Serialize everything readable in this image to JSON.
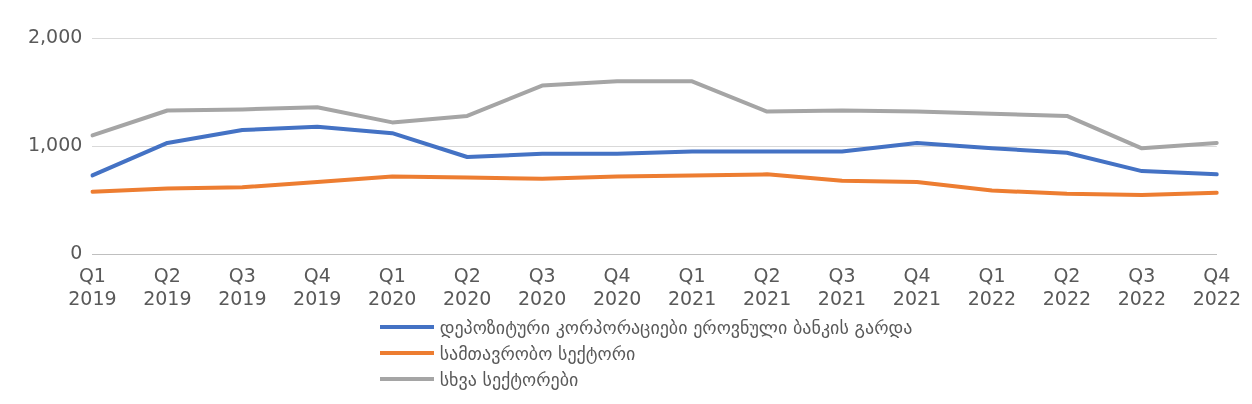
{
  "chart_data": {
    "type": "line",
    "categories": [
      "Q1 2019",
      "Q2 2019",
      "Q3 2019",
      "Q4 2019",
      "Q1 2020",
      "Q2 2020",
      "Q3 2020",
      "Q4 2020",
      "Q1 2021",
      "Q2 2021",
      "Q3 2021",
      "Q4 2021",
      "Q1 2022",
      "Q2 2022",
      "Q3 2022",
      "Q4 2022"
    ],
    "series": [
      {
        "name": "დეპოზიტური კორპორაციები ეროვნული ბანკის გარდა",
        "color": "#4472c4",
        "values": [
          730,
          1030,
          1150,
          1180,
          1120,
          900,
          930,
          930,
          950,
          950,
          950,
          1030,
          980,
          940,
          770,
          740
        ]
      },
      {
        "name": "სამთავრობო სექტორი",
        "color": "#ed7d31",
        "values": [
          580,
          610,
          620,
          670,
          720,
          710,
          700,
          720,
          730,
          740,
          680,
          670,
          590,
          560,
          550,
          570
        ]
      },
      {
        "name": "სხვა სექტორები",
        "color": "#a5a5a5",
        "values": [
          1100,
          1330,
          1340,
          1360,
          1220,
          1280,
          1560,
          1600,
          1600,
          1320,
          1330,
          1320,
          1300,
          1280,
          980,
          1030
        ]
      }
    ],
    "ylim": [
      0,
      2000
    ],
    "yticks": [
      {
        "value": 0,
        "label": "0"
      },
      {
        "value": 1000,
        "label": "1,000"
      },
      {
        "value": 2000,
        "label": "2,000"
      }
    ],
    "grid": "y",
    "legend": "bottom",
    "marker": "none",
    "line_style": "solid"
  }
}
